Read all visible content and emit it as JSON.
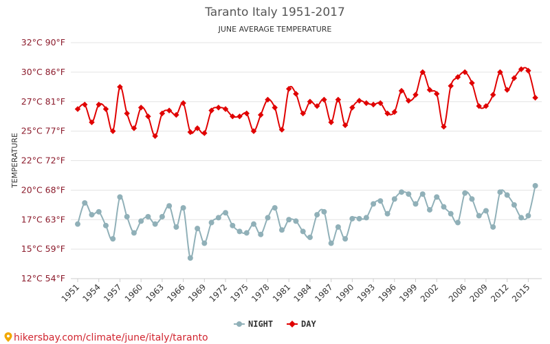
{
  "chart_data": {
    "type": "line",
    "title": "Taranto Italy 1951-2017",
    "subtitle": "JUNE AVERAGE TEMPERATURE",
    "ylabel": "TEMPERATURE",
    "xlabel": "",
    "ylim": [
      12,
      32
    ],
    "y_ticks": [
      {
        "value": 12,
        "label": "12°C 54°F"
      },
      {
        "value": 15,
        "label": "15°C 59°F"
      },
      {
        "value": 17,
        "label": "17°C 63°F"
      },
      {
        "value": 20,
        "label": "20°C 68°F"
      },
      {
        "value": 22,
        "label": "22°C 72°F"
      },
      {
        "value": 25,
        "label": "25°C 77°F"
      },
      {
        "value": 27,
        "label": "27°C 81°F"
      },
      {
        "value": 30,
        "label": "30°C 86°F"
      },
      {
        "value": 32,
        "label": "32°C 90°F"
      }
    ],
    "x_ticks": [
      "1951",
      "1954",
      "1957",
      "1960",
      "1963",
      "1966",
      "1969",
      "1972",
      "1975",
      "1978",
      "1981",
      "1984",
      "1987",
      "1990",
      "1993",
      "1996",
      "1999",
      "2002",
      "2006",
      "2009",
      "2012",
      "2015"
    ],
    "x": [
      1951,
      1952,
      1953,
      1954,
      1955,
      1956,
      1957,
      1958,
      1959,
      1960,
      1961,
      1962,
      1963,
      1964,
      1965,
      1966,
      1967,
      1968,
      1969,
      1970,
      1971,
      1972,
      1973,
      1974,
      1975,
      1976,
      1977,
      1978,
      1979,
      1980,
      1981,
      1982,
      1983,
      1984,
      1985,
      1986,
      1987,
      1988,
      1989,
      1990,
      1991,
      1992,
      1993,
      1994,
      1995,
      1996,
      1997,
      1998,
      1999,
      2000,
      2001,
      2002,
      2003,
      2004,
      2005,
      2006,
      2007,
      2008,
      2009,
      2010,
      2011,
      2012,
      2013,
      2014,
      2015,
      2016,
      2017
    ],
    "series": [
      {
        "name": "NIGHT",
        "color": "#90b0b8",
        "marker": "circle",
        "values": [
          16.7,
          18.7,
          17.5,
          17.8,
          16.6,
          15.7,
          19.3,
          17.3,
          16.1,
          16.9,
          17.3,
          16.7,
          17.3,
          18.4,
          16.5,
          18.2,
          14.1,
          16.4,
          15.4,
          16.8,
          17.2,
          17.7,
          16.6,
          16.2,
          16.1,
          16.7,
          16.0,
          17.2,
          18.2,
          16.3,
          17.0,
          16.9,
          16.2,
          15.8,
          17.5,
          17.8,
          15.4,
          16.5,
          15.7,
          17.1,
          17.1,
          17.2,
          18.6,
          18.9,
          17.6,
          19.1,
          19.8,
          19.6,
          18.6,
          19.6,
          18.0,
          19.3,
          18.3,
          17.6,
          16.8,
          19.7,
          19.1,
          17.4,
          17.9,
          16.5,
          19.8,
          19.5,
          18.5,
          17.2,
          17.4,
          20.3,
          null
        ],
        "display_values": [
          16.7,
          18.7,
          17.5,
          17.8,
          16.6,
          15.7,
          19.3,
          17.3,
          16.1,
          16.9,
          17.3,
          16.7,
          17.3,
          18.4,
          16.5,
          18.2,
          14.1,
          16.4,
          15.4,
          16.8,
          17.2,
          17.7,
          16.6,
          16.2,
          16.1,
          16.7,
          16.0,
          17.2,
          18.2,
          16.3,
          17.0,
          16.9,
          16.2,
          15.8,
          17.5,
          17.8,
          15.4,
          16.5,
          15.7,
          17.1,
          17.1,
          17.2,
          18.6,
          18.9,
          17.6,
          19.1,
          19.8,
          19.6,
          18.6,
          19.6,
          18.0,
          19.3,
          18.3,
          17.6,
          16.8,
          19.7,
          19.1,
          17.4,
          17.9,
          16.5,
          19.8,
          19.5,
          18.5,
          17.2,
          17.4,
          20.3
        ]
      },
      {
        "name": "DAY",
        "color": "#e00000",
        "marker": "diamond",
        "values": [
          26.5,
          26.8,
          25.6,
          26.8,
          26.5,
          25.0,
          28.5,
          26.2,
          25.2,
          26.6,
          26.0,
          24.5,
          26.2,
          26.4,
          26.1,
          26.9,
          24.9,
          25.2,
          24.8,
          26.4,
          26.6,
          26.5,
          26.0,
          26.0,
          26.2,
          25.0,
          26.1,
          27.2,
          26.6,
          25.1,
          28.3,
          27.8,
          26.2,
          27.0,
          26.7,
          27.2,
          25.6,
          27.2,
          25.4,
          26.6,
          27.1,
          26.9,
          26.8,
          26.9,
          26.2,
          26.3,
          28.1,
          27.1,
          27.7,
          30.0,
          28.2,
          27.8,
          25.3,
          28.6,
          29.5,
          30.0,
          28.9,
          26.7,
          26.7,
          27.7,
          30.0,
          28.2,
          29.4,
          30.2,
          30.1,
          27.4,
          null
        ],
        "display_values": [
          26.5,
          26.8,
          25.6,
          26.8,
          26.5,
          25.0,
          28.5,
          26.2,
          25.2,
          26.6,
          26.0,
          24.5,
          26.2,
          26.4,
          26.1,
          26.9,
          24.9,
          25.2,
          24.8,
          26.4,
          26.6,
          26.5,
          26.0,
          26.0,
          26.2,
          25.0,
          26.1,
          27.2,
          26.6,
          25.1,
          28.3,
          27.8,
          26.2,
          27.0,
          26.7,
          27.2,
          25.6,
          27.2,
          25.4,
          26.6,
          27.1,
          26.9,
          26.8,
          26.9,
          26.2,
          26.3,
          28.1,
          27.1,
          27.7,
          30.0,
          28.2,
          27.8,
          25.3,
          28.6,
          29.5,
          30.0,
          28.9,
          26.7,
          26.7,
          27.7,
          30.0,
          28.2,
          29.4,
          30.2,
          30.1,
          27.4
        ]
      }
    ],
    "grid": true,
    "legend_position": "bottom-center"
  },
  "source_text": "hikersbay.com/climate/june/italy/taranto",
  "pin_icon": "location-pin-icon"
}
